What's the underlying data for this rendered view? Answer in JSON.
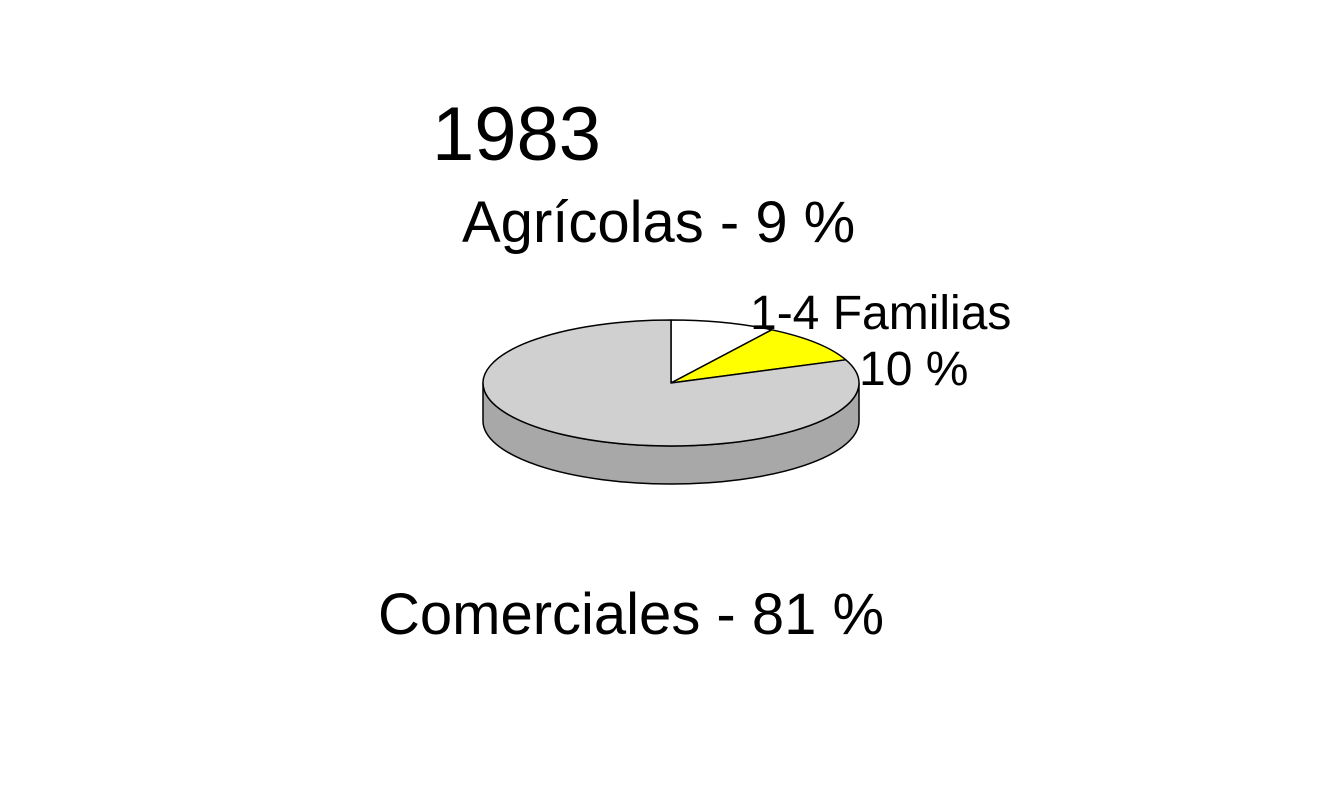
{
  "chart_data": {
    "type": "pie",
    "style": "3d",
    "title": "1983",
    "slices": [
      {
        "label": "Agrícolas - 9 %",
        "value": 9,
        "color": "#ffffff"
      },
      {
        "label": "1-4 Familias",
        "sublabel": "10 %",
        "value": 10,
        "color": "#ffff00"
      },
      {
        "label": "Comerciales - 81 %",
        "value": 81,
        "color": "#d0d0d0"
      }
    ],
    "side_color": "#a8a8a8",
    "edge_color": "#000000"
  }
}
